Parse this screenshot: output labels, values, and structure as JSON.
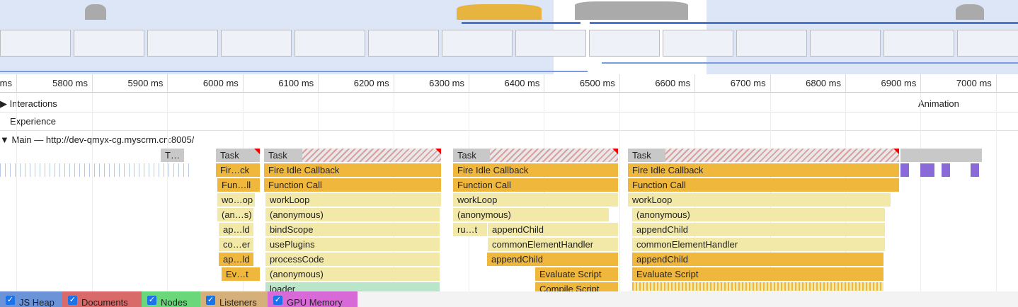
{
  "ruler": {
    "ticks": [
      "ms",
      "5800 ms",
      "5900 ms",
      "6000 ms",
      "6100 ms",
      "6200 ms",
      "6300 ms",
      "6400 ms",
      "6500 ms",
      "6600 ms",
      "6700 ms",
      "6800 ms",
      "6900 ms",
      "7000 ms"
    ]
  },
  "tracks": {
    "interactions": "Interactions",
    "experience": "Experience",
    "animation": "Animation",
    "main": "Main — http://dev-qmyx-cg.myscrm.cn:8005/"
  },
  "flame": {
    "groups": [
      [
        "T…"
      ],
      [
        "Task",
        "Fir…ck",
        "Fun…ll",
        "wo…op",
        "(an…s)",
        "ap…ld",
        "co…er",
        "ap…ld",
        "Ev…t"
      ],
      [
        "Task",
        "Fire Idle Callback",
        "Function Call",
        "workLoop",
        "(anonymous)",
        "bindScope",
        "usePlugins",
        "processCode",
        "(anonymous)",
        "loader"
      ],
      [
        "Task",
        "Fire Idle Callback",
        "Function Call",
        "workLoop",
        "(anonymous)",
        "ru…t",
        "appendChild",
        "commonElementHandler",
        "appendChild",
        "Evaluate Script",
        "Compile Script"
      ],
      [
        "Task",
        "Fire Idle Callback",
        "Function Call",
        "workLoop",
        "(anonymous)",
        "appendChild",
        "commonElementHandler",
        "appendChild",
        "Evaluate Script"
      ]
    ]
  },
  "footer": {
    "checkboxes": [
      "JS Heap",
      "Documents",
      "Nodes",
      "Listeners",
      "GPU Memory"
    ]
  }
}
